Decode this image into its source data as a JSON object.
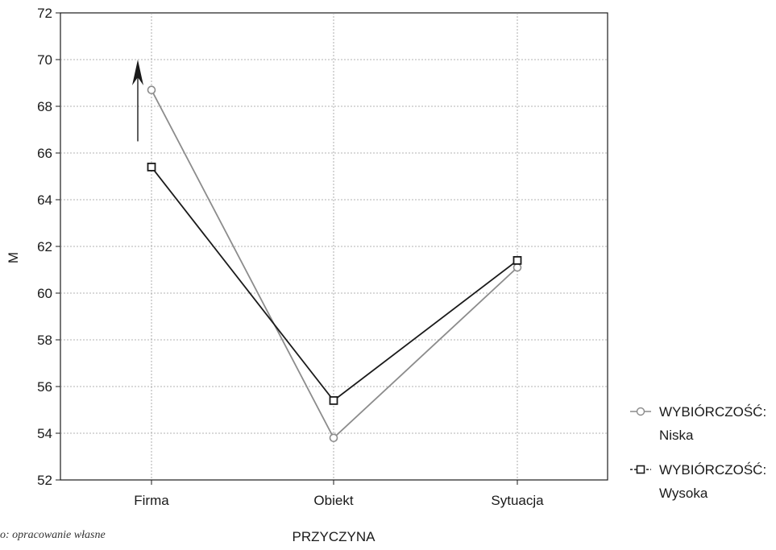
{
  "chart_data": {
    "type": "line",
    "title": "",
    "xlabel": "PRZYCZYNA",
    "ylabel": "M",
    "categories": [
      "Firma",
      "Obiekt",
      "Sytuacja"
    ],
    "ylim": [
      52,
      72
    ],
    "yticks": [
      52,
      54,
      56,
      58,
      60,
      62,
      64,
      66,
      68,
      70,
      72
    ],
    "grid": true,
    "legend_placement": "right",
    "series": [
      {
        "name": "WYBIÓRCZOŚĆ: Niska",
        "name_lines": [
          "WYBIÓRCZOŚĆ:",
          "Niska"
        ],
        "values": [
          68.7,
          53.8,
          61.1
        ],
        "marker": "circle",
        "color": "#8c8c8c"
      },
      {
        "name": "WYBIÓRCZOŚĆ: Wysoka",
        "name_lines": [
          "WYBIÓRCZOŚĆ:",
          "Wysoka"
        ],
        "values": [
          65.4,
          55.4,
          61.4
        ],
        "marker": "square",
        "color": "#1a1a1a"
      }
    ],
    "annotations": [
      {
        "type": "arrow-up",
        "category": "Firma",
        "from": 66.5,
        "to": 70.0
      }
    ],
    "source_note": "o: opracowanie własne"
  }
}
